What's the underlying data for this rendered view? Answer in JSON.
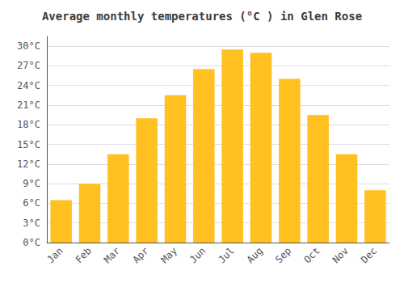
{
  "chart_data": {
    "type": "bar",
    "title": "Average monthly temperatures (°C ) in Glen Rose",
    "categories": [
      "Jan",
      "Feb",
      "Mar",
      "Apr",
      "May",
      "Jun",
      "Jul",
      "Aug",
      "Sep",
      "Oct",
      "Nov",
      "Dec"
    ],
    "values": [
      6.5,
      9.0,
      13.5,
      19.0,
      22.5,
      26.5,
      29.5,
      29.0,
      25.0,
      19.5,
      13.5,
      8.0
    ],
    "color": "#FFC020",
    "ylim": [
      0,
      31.5
    ],
    "yticks": [
      {
        "value": 0,
        "label": "0°C"
      },
      {
        "value": 3,
        "label": "3°C"
      },
      {
        "value": 6,
        "label": "6°C"
      },
      {
        "value": 9,
        "label": "9°C"
      },
      {
        "value": 12,
        "label": "12°C"
      },
      {
        "value": 15,
        "label": "15°C"
      },
      {
        "value": 18,
        "label": "18°C"
      },
      {
        "value": 21,
        "label": "21°C"
      },
      {
        "value": 24,
        "label": "24°C"
      },
      {
        "value": 27,
        "label": "27°C"
      },
      {
        "value": 30,
        "label": "30°C"
      }
    ],
    "grid": true
  }
}
